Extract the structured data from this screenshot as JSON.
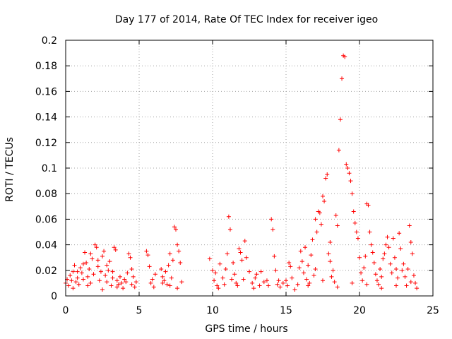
{
  "chart_data": {
    "type": "scatter",
    "title": "Day 177 of 2014, Rate Of TEC Index for receiver igeo",
    "xlabel": "GPS time / hours",
    "ylabel": "ROTI / TECUs",
    "xlim": [
      0,
      25
    ],
    "ylim": [
      0,
      0.2
    ],
    "xticks": [
      0,
      5,
      10,
      15,
      20,
      25
    ],
    "xtick_labels": [
      "0",
      "5",
      "10",
      "15",
      "20",
      "25"
    ],
    "yticks": [
      0,
      0.02,
      0.04,
      0.06,
      0.08,
      0.1,
      0.12,
      0.14,
      0.16,
      0.18,
      0.2
    ],
    "ytick_labels": [
      "0",
      "0.02",
      "0.04",
      "0.06",
      "0.08",
      "0.1",
      "0.12",
      "0.14",
      "0.16",
      "0.18",
      "0.2"
    ],
    "grid": true,
    "marker": "+",
    "series": [
      {
        "name": "ROTI",
        "color": "#ff0000",
        "points": [
          [
            0.0,
            0.01
          ],
          [
            0.1,
            0.013
          ],
          [
            0.2,
            0.008
          ],
          [
            0.3,
            0.016
          ],
          [
            0.4,
            0.012
          ],
          [
            0.5,
            0.019
          ],
          [
            0.6,
            0.024
          ],
          [
            0.7,
            0.011
          ],
          [
            0.8,
            0.014
          ],
          [
            0.9,
            0.009
          ],
          [
            1.0,
            0.022
          ],
          [
            1.1,
            0.018
          ],
          [
            1.2,
            0.013
          ],
          [
            1.3,
            0.034
          ],
          [
            1.4,
            0.026
          ],
          [
            1.5,
            0.015
          ],
          [
            1.6,
            0.021
          ],
          [
            1.7,
            0.01
          ],
          [
            1.8,
            0.029
          ],
          [
            1.9,
            0.017
          ],
          [
            2.0,
            0.04
          ],
          [
            2.1,
            0.038
          ],
          [
            2.2,
            0.023
          ],
          [
            2.3,
            0.012
          ],
          [
            2.4,
            0.019
          ],
          [
            2.5,
            0.031
          ],
          [
            2.6,
            0.035
          ],
          [
            2.7,
            0.016
          ],
          [
            2.8,
            0.011
          ],
          [
            2.9,
            0.02
          ],
          [
            3.0,
            0.027
          ],
          [
            3.1,
            0.008
          ],
          [
            3.2,
            0.014
          ],
          [
            3.3,
            0.038
          ],
          [
            3.4,
            0.036
          ],
          [
            3.5,
            0.012
          ],
          [
            3.6,
            0.009
          ],
          [
            3.7,
            0.015
          ],
          [
            3.8,
            0.01
          ],
          [
            3.9,
            0.006
          ],
          [
            4.0,
            0.013
          ],
          [
            4.1,
            0.011
          ],
          [
            4.3,
            0.033
          ],
          [
            4.4,
            0.03
          ],
          [
            4.5,
            0.021
          ],
          [
            4.6,
            0.015
          ],
          [
            4.7,
            0.007
          ],
          [
            4.8,
            0.011
          ],
          [
            0.5,
            0.006
          ],
          [
            1.5,
            0.008
          ],
          [
            2.5,
            0.005
          ],
          [
            3.5,
            0.007
          ],
          [
            1.2,
            0.025
          ],
          [
            1.7,
            0.033
          ],
          [
            2.2,
            0.028
          ],
          [
            0.8,
            0.019
          ],
          [
            2.8,
            0.024
          ],
          [
            3.2,
            0.019
          ],
          [
            4.2,
            0.018
          ],
          [
            4.5,
            0.009
          ],
          [
            5.5,
            0.035
          ],
          [
            5.6,
            0.032
          ],
          [
            5.7,
            0.023
          ],
          [
            5.8,
            0.01
          ],
          [
            5.9,
            0.013
          ],
          [
            6.0,
            0.007
          ],
          [
            6.1,
            0.017
          ],
          [
            6.5,
            0.021
          ],
          [
            6.6,
            0.015
          ],
          [
            6.7,
            0.012
          ],
          [
            6.8,
            0.019
          ],
          [
            6.9,
            0.009
          ],
          [
            7.0,
            0.024
          ],
          [
            7.1,
            0.033
          ],
          [
            7.2,
            0.014
          ],
          [
            7.3,
            0.028
          ],
          [
            7.4,
            0.054
          ],
          [
            7.5,
            0.052
          ],
          [
            7.6,
            0.04
          ],
          [
            7.7,
            0.035
          ],
          [
            7.8,
            0.026
          ],
          [
            7.9,
            0.011
          ],
          [
            6.6,
            0.01
          ],
          [
            7.1,
            0.008
          ],
          [
            7.6,
            0.006
          ],
          [
            9.8,
            0.029
          ],
          [
            10.0,
            0.02
          ],
          [
            10.1,
            0.012
          ],
          [
            10.2,
            0.018
          ],
          [
            10.3,
            0.008
          ],
          [
            10.5,
            0.025
          ],
          [
            10.7,
            0.014
          ],
          [
            10.8,
            0.009
          ],
          [
            10.9,
            0.021
          ],
          [
            11.0,
            0.033
          ],
          [
            11.1,
            0.062
          ],
          [
            11.2,
            0.052
          ],
          [
            11.3,
            0.013
          ],
          [
            11.4,
            0.026
          ],
          [
            11.5,
            0.017
          ],
          [
            11.6,
            0.01
          ],
          [
            11.8,
            0.037
          ],
          [
            11.9,
            0.034
          ],
          [
            12.0,
            0.028
          ],
          [
            12.1,
            0.013
          ],
          [
            12.2,
            0.043
          ],
          [
            12.3,
            0.03
          ],
          [
            12.5,
            0.019
          ],
          [
            12.7,
            0.01
          ],
          [
            12.8,
            0.006
          ],
          [
            13.0,
            0.017
          ],
          [
            13.2,
            0.008
          ],
          [
            13.5,
            0.011
          ],
          [
            13.7,
            0.012
          ],
          [
            13.8,
            0.008
          ],
          [
            14.0,
            0.06
          ],
          [
            14.1,
            0.052
          ],
          [
            14.2,
            0.031
          ],
          [
            14.3,
            0.02
          ],
          [
            14.5,
            0.012
          ],
          [
            14.6,
            0.007
          ],
          [
            14.8,
            0.01
          ],
          [
            15.0,
            0.012
          ],
          [
            15.1,
            0.008
          ],
          [
            15.2,
            0.026
          ],
          [
            15.3,
            0.023
          ],
          [
            15.4,
            0.014
          ],
          [
            15.6,
            0.005
          ],
          [
            15.8,
            0.009
          ],
          [
            15.9,
            0.022
          ],
          [
            10.4,
            0.006
          ],
          [
            11.7,
            0.008
          ],
          [
            12.9,
            0.014
          ],
          [
            13.3,
            0.019
          ],
          [
            14.4,
            0.009
          ],
          [
            16.0,
            0.035
          ],
          [
            16.1,
            0.027
          ],
          [
            16.2,
            0.018
          ],
          [
            16.3,
            0.038
          ],
          [
            16.4,
            0.013
          ],
          [
            16.5,
            0.024
          ],
          [
            16.6,
            0.01
          ],
          [
            16.7,
            0.032
          ],
          [
            16.8,
            0.044
          ],
          [
            16.9,
            0.016
          ],
          [
            17.0,
            0.06
          ],
          [
            17.1,
            0.05
          ],
          [
            17.2,
            0.066
          ],
          [
            17.3,
            0.065
          ],
          [
            17.4,
            0.056
          ],
          [
            17.5,
            0.078
          ],
          [
            17.6,
            0.074
          ],
          [
            17.7,
            0.092
          ],
          [
            17.8,
            0.095
          ],
          [
            17.9,
            0.033
          ],
          [
            18.0,
            0.027
          ],
          [
            18.1,
            0.015
          ],
          [
            18.2,
            0.02
          ],
          [
            18.3,
            0.011
          ],
          [
            18.4,
            0.063
          ],
          [
            18.5,
            0.055
          ],
          [
            18.6,
            0.114
          ],
          [
            18.7,
            0.138
          ],
          [
            18.8,
            0.17
          ],
          [
            18.9,
            0.188
          ],
          [
            19.0,
            0.187
          ],
          [
            19.1,
            0.103
          ],
          [
            19.2,
            0.1
          ],
          [
            19.3,
            0.096
          ],
          [
            19.4,
            0.09
          ],
          [
            19.5,
            0.08
          ],
          [
            19.6,
            0.066
          ],
          [
            19.7,
            0.057
          ],
          [
            19.8,
            0.05
          ],
          [
            19.9,
            0.045
          ],
          [
            20.0,
            0.03
          ],
          [
            20.1,
            0.018
          ],
          [
            20.2,
            0.012
          ],
          [
            20.3,
            0.022
          ],
          [
            20.4,
            0.031
          ],
          [
            20.5,
            0.072
          ],
          [
            20.6,
            0.071
          ],
          [
            20.7,
            0.05
          ],
          [
            20.8,
            0.04
          ],
          [
            20.9,
            0.034
          ],
          [
            21.0,
            0.026
          ],
          [
            21.1,
            0.017
          ],
          [
            21.2,
            0.012
          ],
          [
            21.3,
            0.009
          ],
          [
            21.4,
            0.021
          ],
          [
            21.5,
            0.015
          ],
          [
            21.6,
            0.029
          ],
          [
            21.7,
            0.033
          ],
          [
            21.8,
            0.04
          ],
          [
            21.9,
            0.046
          ],
          [
            22.0,
            0.038
          ],
          [
            22.1,
            0.025
          ],
          [
            22.2,
            0.018
          ],
          [
            22.3,
            0.045
          ],
          [
            22.4,
            0.03
          ],
          [
            22.5,
            0.021
          ],
          [
            22.6,
            0.014
          ],
          [
            22.7,
            0.049
          ],
          [
            22.8,
            0.037
          ],
          [
            22.9,
            0.02
          ],
          [
            23.0,
            0.025
          ],
          [
            23.1,
            0.015
          ],
          [
            23.2,
            0.008
          ],
          [
            23.3,
            0.021
          ],
          [
            23.4,
            0.055
          ],
          [
            23.5,
            0.042
          ],
          [
            23.6,
            0.033
          ],
          [
            23.7,
            0.016
          ],
          [
            23.8,
            0.01
          ],
          [
            23.9,
            0.006
          ],
          [
            16.5,
            0.008
          ],
          [
            17.5,
            0.012
          ],
          [
            18.5,
            0.007
          ],
          [
            19.5,
            0.01
          ],
          [
            20.5,
            0.009
          ],
          [
            21.5,
            0.006
          ],
          [
            22.5,
            0.008
          ],
          [
            23.5,
            0.011
          ],
          [
            17.0,
            0.021
          ],
          [
            18.0,
            0.042
          ]
        ]
      }
    ]
  }
}
